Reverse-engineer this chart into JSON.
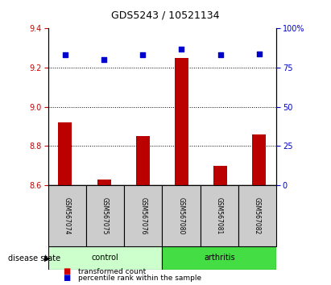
{
  "title": "GDS5243 / 10521134",
  "samples": [
    "GSM567074",
    "GSM567075",
    "GSM567076",
    "GSM567080",
    "GSM567081",
    "GSM567082"
  ],
  "bar_values": [
    8.92,
    8.63,
    8.85,
    9.25,
    8.7,
    8.86
  ],
  "scatter_values": [
    83,
    80,
    83,
    87,
    83,
    84
  ],
  "ylim_left": [
    8.6,
    9.4
  ],
  "ylim_right": [
    0,
    100
  ],
  "yticks_left": [
    8.6,
    8.8,
    9.0,
    9.2,
    9.4
  ],
  "yticks_right": [
    0,
    25,
    50,
    75,
    100
  ],
  "bar_bottom": 8.6,
  "bar_color": "#BB0000",
  "scatter_color": "#0000CC",
  "grid_yticks": [
    8.8,
    9.0,
    9.2
  ],
  "control_color": "#CCFFCC",
  "arthritis_color": "#44DD44",
  "bar_color_legend": "#CC0000",
  "scatter_color_legend": "#0000CC",
  "legend_bar_label": "transformed count",
  "legend_scatter_label": "percentile rank within the sample",
  "disease_state_label": "disease state",
  "control_label": "control",
  "arthritis_label": "arthritis",
  "tick_color_left": "#CC0000",
  "tick_color_right": "#0000CC",
  "sample_box_color": "#CCCCCC",
  "right_axis_top_label": "100%"
}
